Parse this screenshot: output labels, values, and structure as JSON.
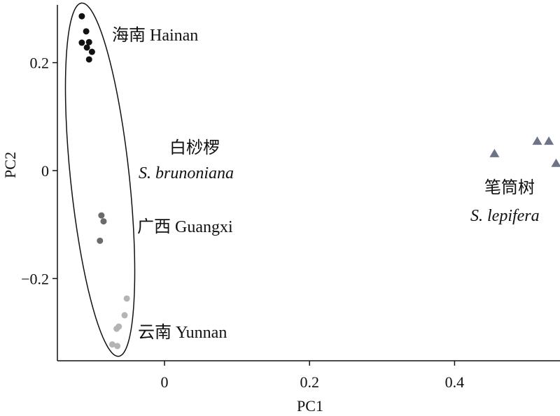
{
  "chart_data": {
    "type": "scatter",
    "xlabel": "PC1",
    "ylabel": "PC2",
    "xlim": [
      -0.145,
      0.545
    ],
    "ylim": [
      -0.355,
      0.305
    ],
    "xticks": [
      0,
      0.2,
      0.4
    ],
    "xtick_labels": [
      "0",
      "0.2",
      "0.4"
    ],
    "yticks": [
      0.2,
      0,
      -0.2
    ],
    "ytick_labels": [
      "0.2",
      "0",
      "−0.2"
    ],
    "grid": false,
    "series": [
      {
        "name": "海南 Hainan",
        "marker": "circle",
        "color": "#111111",
        "points": [
          {
            "x": -0.114,
            "y": 0.286
          },
          {
            "x": -0.108,
            "y": 0.258
          },
          {
            "x": -0.114,
            "y": 0.237
          },
          {
            "x": -0.104,
            "y": 0.238
          },
          {
            "x": -0.107,
            "y": 0.228
          },
          {
            "x": -0.1,
            "y": 0.22
          },
          {
            "x": -0.104,
            "y": 0.206
          }
        ]
      },
      {
        "name": "广西 Guangxi",
        "marker": "circle",
        "color": "#6b6b6b",
        "points": [
          {
            "x": -0.087,
            "y": -0.083
          },
          {
            "x": -0.084,
            "y": -0.094
          },
          {
            "x": -0.089,
            "y": -0.13
          }
        ]
      },
      {
        "name": "云南 Yunnan",
        "marker": "circle",
        "color": "#b4b4b4",
        "points": [
          {
            "x": -0.052,
            "y": -0.237
          },
          {
            "x": -0.055,
            "y": -0.268
          },
          {
            "x": -0.063,
            "y": -0.289
          },
          {
            "x": -0.066,
            "y": -0.293
          },
          {
            "x": -0.072,
            "y": -0.322
          },
          {
            "x": -0.065,
            "y": -0.325
          }
        ]
      },
      {
        "name": "笔筒树 S. lepifera",
        "marker": "triangle",
        "color": "#6e7387",
        "points": [
          {
            "x": 0.455,
            "y": 0.031
          },
          {
            "x": 0.514,
            "y": 0.054
          },
          {
            "x": 0.53,
            "y": 0.054
          },
          {
            "x": 0.54,
            "y": 0.013
          }
        ]
      }
    ],
    "annotations": {
      "hainan": "海南 Hainan",
      "brunoniana_cn": "白桫椤",
      "brunoniana_latin": "S. brunoniana",
      "guangxi": "广西 Guangxi",
      "yunnan": "云南 Yunnan",
      "lepifera_cn": "笔筒树",
      "lepifera_latin": "S. lepifera"
    }
  }
}
